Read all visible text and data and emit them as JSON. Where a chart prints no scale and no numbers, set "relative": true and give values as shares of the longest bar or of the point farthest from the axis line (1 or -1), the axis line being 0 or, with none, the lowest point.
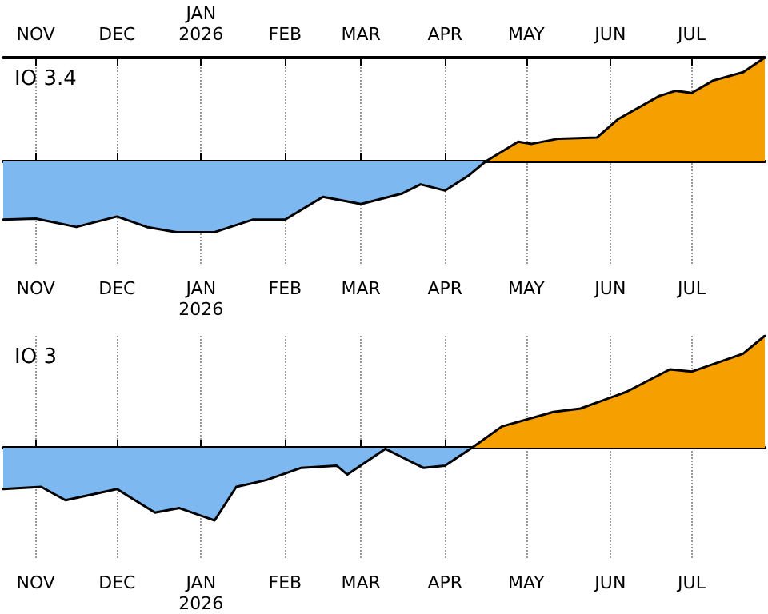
{
  "chart_data": [
    {
      "type": "area",
      "title": "IO 3.4",
      "relative": true,
      "grid": "x",
      "xlim": [
        "2025-10-20",
        "2026-07-28"
      ],
      "xticks": [
        {
          "value": "2025-11-01",
          "label": "NOV"
        },
        {
          "value": "2025-12-01",
          "label": "DEC"
        },
        {
          "value": "2026-01-01",
          "label": "JAN\n2026"
        },
        {
          "value": "2026-02-01",
          "label": "FEB"
        },
        {
          "value": "2026-03-01",
          "label": "MAR"
        },
        {
          "value": "2026-04-01",
          "label": "APR"
        },
        {
          "value": "2026-05-01",
          "label": "MAY"
        },
        {
          "value": "2026-06-01",
          "label": "JUN"
        },
        {
          "value": "2026-07-01",
          "label": "JUL"
        }
      ],
      "x2lim": [
        "2025-10-20",
        "2026-07-28"
      ],
      "x2ticks": [
        {
          "value": "2025-11-01",
          "label": "NOV"
        },
        {
          "value": "2025-12-01",
          "label": "DEC"
        },
        {
          "value": "2026-01-01",
          "label": "JAN\n2026"
        },
        {
          "value": "2026-02-01",
          "label": "FEB"
        },
        {
          "value": "2026-03-01",
          "label": "MAR"
        },
        {
          "value": "2026-04-01",
          "label": "APR"
        },
        {
          "value": "2026-05-01",
          "label": "MAY"
        },
        {
          "value": "2026-06-01",
          "label": "JUN"
        },
        {
          "value": "2026-07-01",
          "label": "JUL"
        }
      ],
      "series": [
        {
          "color": "#7db8f0",
          "x": [
            "2025-10-20",
            "2025-11-01",
            "2025-11-16",
            "2025-12-01",
            "2025-12-12",
            "2025-12-23",
            "2026-01-06",
            "2026-01-20",
            "2026-02-01",
            "2026-02-15",
            "2026-03-01",
            "2026-03-16",
            "2026-03-23",
            "2026-04-01",
            "2026-04-10",
            "2026-04-16"
          ],
          "values": [
            -0.56,
            -0.55,
            -0.63,
            -0.53,
            -0.63,
            -0.68,
            -0.68,
            -0.56,
            -0.56,
            -0.34,
            -0.41,
            -0.31,
            -0.22,
            -0.28,
            -0.13,
            0
          ]
        },
        {
          "color": "#f5a000",
          "x": [
            "2026-04-16",
            "2026-04-28",
            "2026-05-03",
            "2026-05-13",
            "2026-05-27",
            "2026-06-04",
            "2026-06-19",
            "2026-06-25",
            "2026-07-01",
            "2026-07-09",
            "2026-07-20",
            "2026-07-28"
          ],
          "values": [
            0,
            0.19,
            0.17,
            0.22,
            0.23,
            0.41,
            0.63,
            0.68,
            0.66,
            0.78,
            0.86,
            1
          ]
        }
      ]
    },
    {
      "type": "area",
      "title": "IO 3",
      "relative": true,
      "grid": "x",
      "xlim": [
        "2025-10-20",
        "2026-07-28"
      ],
      "xticks": [
        {
          "value": "2025-11-01",
          "label": "NOV"
        },
        {
          "value": "2025-12-01",
          "label": "DEC"
        },
        {
          "value": "2026-01-01",
          "label": "JAN\n2026"
        },
        {
          "value": "2026-02-01",
          "label": "FEB"
        },
        {
          "value": "2026-03-01",
          "label": "MAR"
        },
        {
          "value": "2026-04-01",
          "label": "APR"
        },
        {
          "value": "2026-05-01",
          "label": "MAY"
        },
        {
          "value": "2026-06-01",
          "label": "JUN"
        },
        {
          "value": "2026-07-01",
          "label": "JUL"
        }
      ],
      "series": [
        {
          "color": "#7db8f0",
          "x": [
            "2025-10-20",
            "2025-11-03",
            "2025-11-12",
            "2025-12-01",
            "2025-12-15",
            "2025-12-24",
            "2026-01-06",
            "2026-01-14",
            "2026-01-25",
            "2026-02-07",
            "2026-02-20",
            "2026-02-24",
            "2026-03-10",
            "2026-03-24",
            "2026-04-01",
            "2026-04-11"
          ],
          "values": [
            -0.37,
            -0.35,
            -0.47,
            -0.37,
            -0.58,
            -0.54,
            -0.65,
            -0.35,
            -0.29,
            -0.18,
            -0.16,
            -0.24,
            -0.01,
            -0.18,
            -0.16,
            0
          ]
        },
        {
          "color": "#f5a000",
          "x": [
            "2026-04-11",
            "2026-04-22",
            "2026-05-11",
            "2026-05-21",
            "2026-06-07",
            "2026-06-23",
            "2026-07-01",
            "2026-07-20",
            "2026-07-28"
          ],
          "values": [
            0,
            0.19,
            0.32,
            0.35,
            0.5,
            0.7,
            0.68,
            0.84,
            1
          ]
        }
      ]
    }
  ]
}
